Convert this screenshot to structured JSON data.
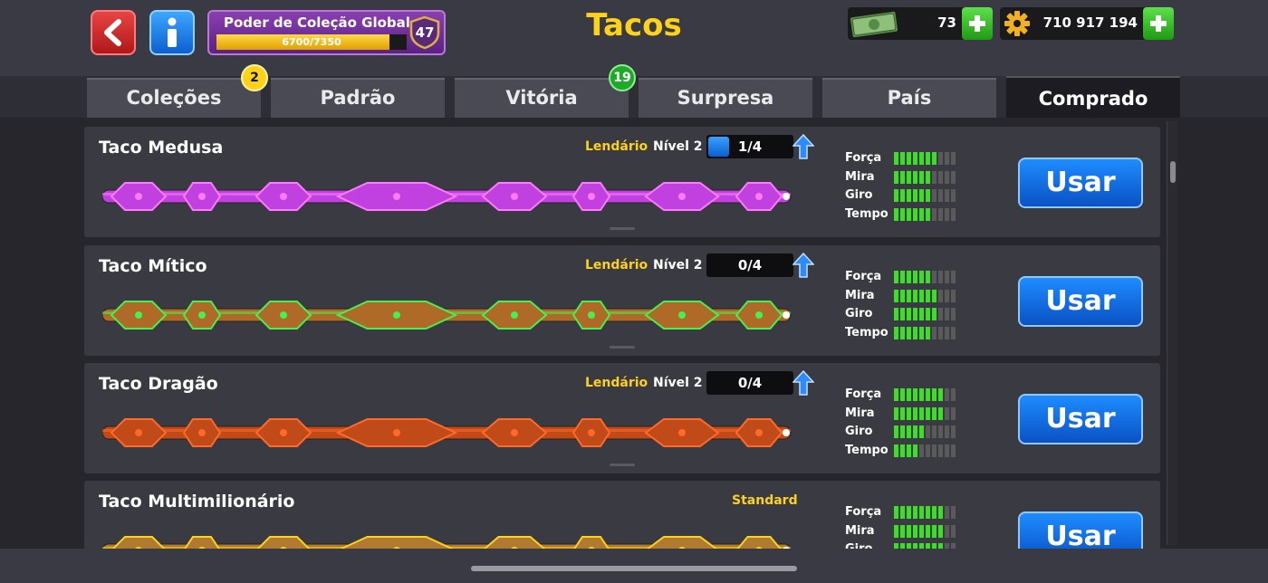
{
  "header": {
    "title": "Tacos",
    "back_icon": "back-chevron-icon",
    "info_icon": "info-icon",
    "collection": {
      "title": "Poder de Coleção Global",
      "value_text": "6700/7350",
      "progress": 0.9116,
      "level": "47"
    },
    "cash": {
      "value": "73",
      "icon": "cash-icon"
    },
    "coins": {
      "value": "710 917 194",
      "icon": "coin-gear-icon"
    }
  },
  "tabs": [
    {
      "label": "Coleções",
      "badge": "2"
    },
    {
      "label": "Padrão"
    },
    {
      "label": "Vitória",
      "badge": "19"
    },
    {
      "label": "Surpresa"
    },
    {
      "label": "País"
    },
    {
      "label": "Comprado",
      "active": true
    }
  ],
  "stat_labels": [
    "Força",
    "Mira",
    "Giro",
    "Tempo"
  ],
  "level_prefix": "Nível",
  "cues": [
    {
      "name": "Taco Medusa",
      "rarity": "Lendário",
      "level": "Nível 2",
      "progress_text": "1/4",
      "progress": 0.25,
      "stats": [
        7,
        6,
        6,
        6
      ],
      "action": "Usar",
      "color": "#c040e0",
      "accent": "#ff7aff"
    },
    {
      "name": "Taco Mítico",
      "rarity": "Lendário",
      "level": "Nível 2",
      "progress_text": "0/4",
      "progress": 0,
      "stats": [
        6,
        7,
        7,
        6
      ],
      "action": "Usar",
      "color": "#b06a28",
      "accent": "#46f050"
    },
    {
      "name": "Taco Dragão",
      "rarity": "Lendário",
      "level": "Nível 2",
      "progress_text": "0/4",
      "progress": 0,
      "stats": [
        8,
        8,
        5,
        4
      ],
      "action": "Usar",
      "color": "#c04a18",
      "accent": "#ff6a2a"
    },
    {
      "name": "Taco Multimilionário",
      "rarity": "Standard",
      "stats": [
        8,
        8,
        8
      ],
      "action": "Usar",
      "color": "#b07a30",
      "accent": "#ffd21a"
    }
  ]
}
